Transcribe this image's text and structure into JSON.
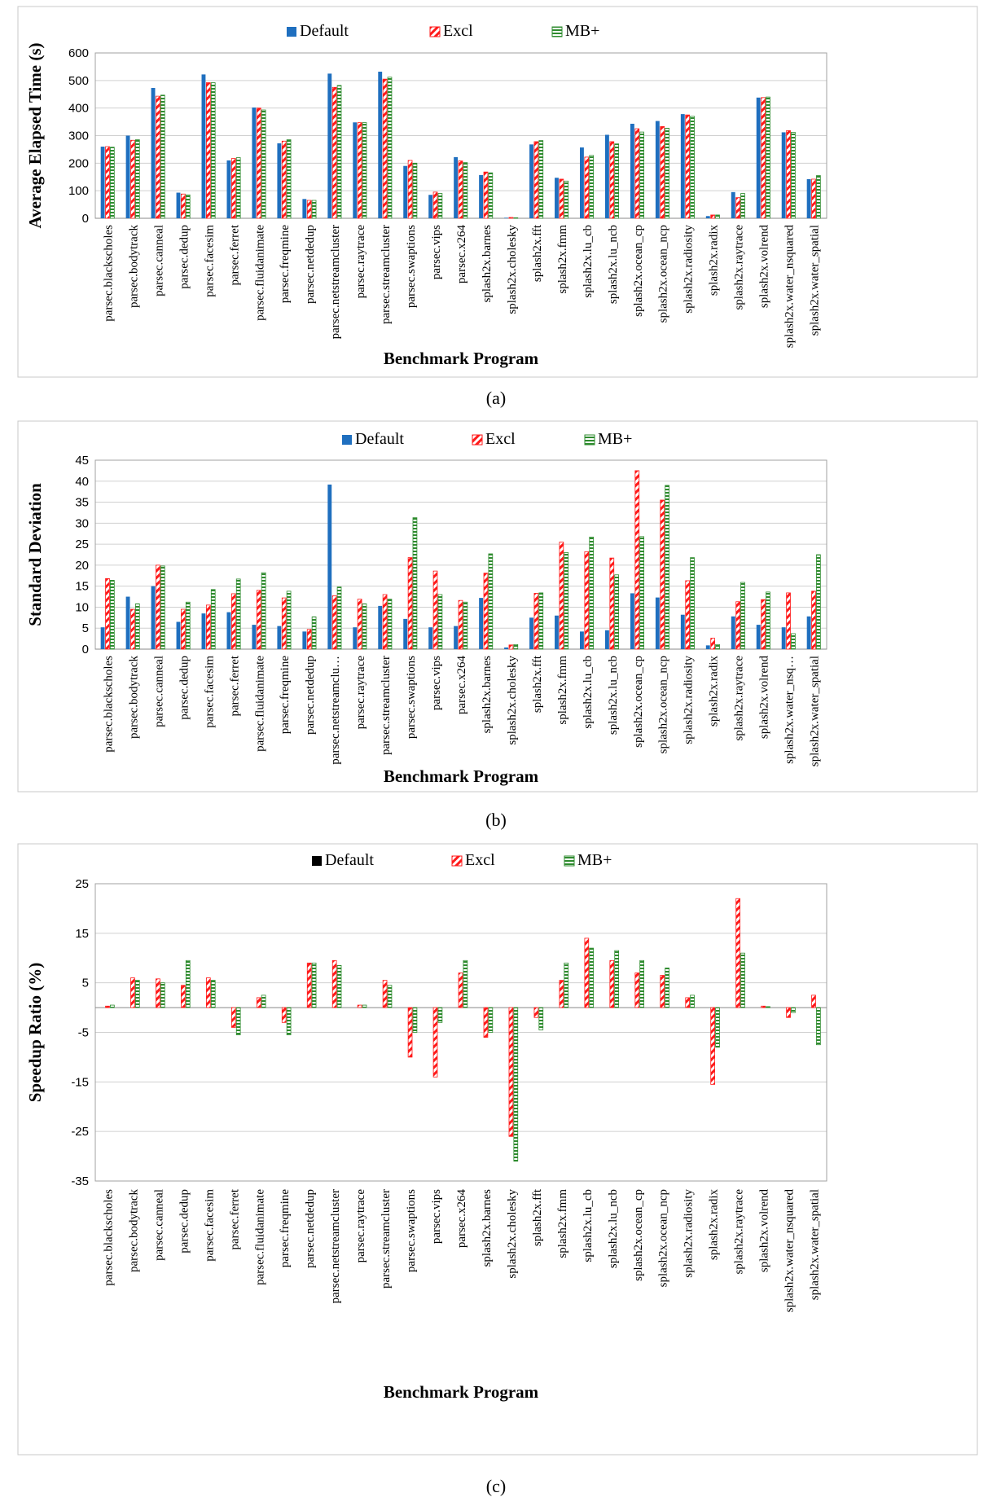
{
  "colors": {
    "default": "#1f6fbf",
    "excl": "#ff1a1a",
    "mb": "#2e8b2e"
  },
  "chart_data": [
    {
      "type": "bar",
      "caption": "(a)",
      "ylabel": "Average Elapsed Time (s)",
      "xlabel": "Benchmark Program",
      "ylim": [
        0,
        600
      ],
      "yticks": [
        0,
        100,
        200,
        300,
        400,
        500,
        600
      ],
      "legend": "top-center",
      "categories": [
        "parsec.blackscholes",
        "parsec.bodytrack",
        "parsec.canneal",
        "parsec.dedup",
        "parsec.facesim",
        "parsec.ferret",
        "parsec.fluidanimate",
        "parsec.freqmine",
        "parsec.netdedup",
        "parsec.netstreamcluster",
        "parsec.raytrace",
        "parsec.streamcluster",
        "parsec.swaptions",
        "parsec.vips",
        "parsec.x264",
        "splash2x.barnes",
        "splash2x.cholesky",
        "splash2x.fft",
        "splash2x.fmm",
        "splash2x.lu_cb",
        "splash2x.lu_ncb",
        "splash2x.ocean_cp",
        "splash2x.ocean_ncp",
        "splash2x.radiosity",
        "splash2x.radix",
        "splash2x.raytrace",
        "splash2x.volrend",
        "splash2x.water_nsquared",
        "splash2x.water_spatial"
      ],
      "series": [
        {
          "name": "Default",
          "values": [
            260,
            300,
            473,
            93,
            522,
            210,
            402,
            272,
            70,
            525,
            348,
            532,
            190,
            85,
            222,
            157,
            2,
            268,
            147,
            257,
            303,
            343,
            353,
            378,
            8,
            95,
            438,
            312,
            142
          ]
        },
        {
          "name": "Excl",
          "values": [
            260,
            283,
            443,
            88,
            492,
            217,
            400,
            280,
            65,
            475,
            347,
            505,
            210,
            95,
            208,
            168,
            3,
            278,
            142,
            222,
            278,
            325,
            333,
            375,
            12,
            75,
            438,
            318,
            142
          ]
        },
        {
          "name": "MB+",
          "values": [
            258,
            285,
            447,
            85,
            492,
            220,
            393,
            285,
            65,
            482,
            347,
            512,
            200,
            90,
            202,
            165,
            2,
            282,
            135,
            228,
            270,
            313,
            327,
            370,
            12,
            90,
            440,
            312,
            155
          ]
        }
      ]
    },
    {
      "type": "bar",
      "caption": "(b)",
      "ylabel": "Standard Deviation",
      "xlabel": "Benchmark Program",
      "ylim": [
        0,
        45
      ],
      "yticks": [
        0,
        5,
        10,
        15,
        20,
        25,
        30,
        35,
        40,
        45
      ],
      "legend": "top-center",
      "categories": [
        "parsec.blackscholes",
        "parsec.bodytrack",
        "parsec.canneal",
        "parsec.dedup",
        "parsec.facesim",
        "parsec.ferret",
        "parsec.fluidanimate",
        "parsec.freqmine",
        "parsec.netdedup",
        "parsec.netstreamclu…",
        "parsec.raytrace",
        "parsec.streamcluster",
        "parsec.swaptions",
        "parsec.vips",
        "parsec.x264",
        "splash2x.barnes",
        "splash2x.cholesky",
        "splash2x.fft",
        "splash2x.fmm",
        "splash2x.lu_cb",
        "splash2x.lu_ncb",
        "splash2x.ocean_cp",
        "splash2x.ocean_ncp",
        "splash2x.radiosity",
        "splash2x.radix",
        "splash2x.raytrace",
        "splash2x.volrend",
        "splash2x.water_nsq…",
        "splash2x.water_spatial"
      ],
      "series": [
        {
          "name": "Default",
          "values": [
            5.2,
            12.5,
            15,
            6.5,
            8.5,
            8.8,
            5.8,
            5.5,
            4.2,
            39.2,
            5.2,
            10.3,
            7.2,
            5.2,
            5.5,
            12.2,
            0.4,
            7.5,
            8,
            4.2,
            4.5,
            13.3,
            12.3,
            8.2,
            0.9,
            7.8,
            5.8,
            5.2,
            7.8
          ]
        },
        {
          "name": "Excl",
          "values": [
            16.8,
            9.5,
            20,
            9.5,
            10.5,
            13.2,
            14,
            12.2,
            4.7,
            12.7,
            11.9,
            13,
            21.8,
            18.6,
            11.6,
            18.1,
            1,
            13.3,
            25.5,
            23.2,
            21.7,
            42.5,
            35.5,
            16.3,
            2.6,
            11.3,
            11.8,
            13.4,
            13.8
          ]
        },
        {
          "name": "MB+",
          "values": [
            16.4,
            10.8,
            19.8,
            11.2,
            14.2,
            16.7,
            18.2,
            13.8,
            7.7,
            14.8,
            10.8,
            11.9,
            31.3,
            13,
            11.2,
            22.7,
            1.1,
            13.4,
            23,
            26.7,
            17.7,
            26.8,
            39,
            21.8,
            1.1,
            15.9,
            13.6,
            3.7,
            22.5
          ]
        }
      ]
    },
    {
      "type": "bar",
      "caption": "(c)",
      "ylabel": "Speedup Ratio (%)",
      "xlabel": "Benchmark Program",
      "ylim": [
        -35,
        25
      ],
      "yticks": [
        25,
        15,
        5,
        -5,
        -15,
        -25,
        -35
      ],
      "legend": "top-center",
      "categories": [
        "parsec.blackscholes",
        "parsec.bodytrack",
        "parsec.canneal",
        "parsec.dedup",
        "parsec.facesim",
        "parsec.ferret",
        "parsec.fluidanimate",
        "parsec.freqmine",
        "parsec.netdedup",
        "parsec.netstreamcluster",
        "parsec.raytrace",
        "parsec.streamcluster",
        "parsec.swaptions",
        "parsec.vips",
        "parsec.x264",
        "splash2x.barnes",
        "splash2x.cholesky",
        "splash2x.fft",
        "splash2x.fmm",
        "splash2x.lu_cb",
        "splash2x.lu_ncb",
        "splash2x.ocean_cp",
        "splash2x.ocean_ncp",
        "splash2x.radiosity",
        "splash2x.radix",
        "splash2x.raytrace",
        "splash2x.volrend",
        "splash2x.water_nsquared",
        "splash2x.water_spatial"
      ],
      "series": [
        {
          "name": "Default",
          "values": [
            0,
            0,
            0,
            0,
            0,
            0,
            0,
            0,
            0,
            0,
            0,
            0,
            0,
            0,
            0,
            0,
            0,
            0,
            0,
            0,
            0,
            0,
            0,
            0,
            0,
            0,
            0,
            0,
            0
          ]
        },
        {
          "name": "Excl",
          "values": [
            0.3,
            6,
            5.8,
            4.5,
            6,
            -4,
            2,
            -3,
            9,
            9.5,
            0.5,
            5.5,
            -10,
            -14,
            7,
            -6,
            -26,
            -2,
            5.5,
            14,
            9.5,
            7,
            6.5,
            2,
            -15.5,
            22,
            0.3,
            -2,
            2.5
          ]
        },
        {
          "name": "MB+",
          "values": [
            0.5,
            5.5,
            5,
            9.5,
            5.5,
            -5.5,
            2.5,
            -5.5,
            9,
            8.5,
            0.5,
            4.5,
            -5,
            -3,
            9.5,
            -5,
            -31,
            -4.5,
            9,
            12,
            11.5,
            9.5,
            8,
            2.5,
            -8,
            11,
            0.2,
            -1,
            -7.5
          ]
        }
      ]
    }
  ]
}
